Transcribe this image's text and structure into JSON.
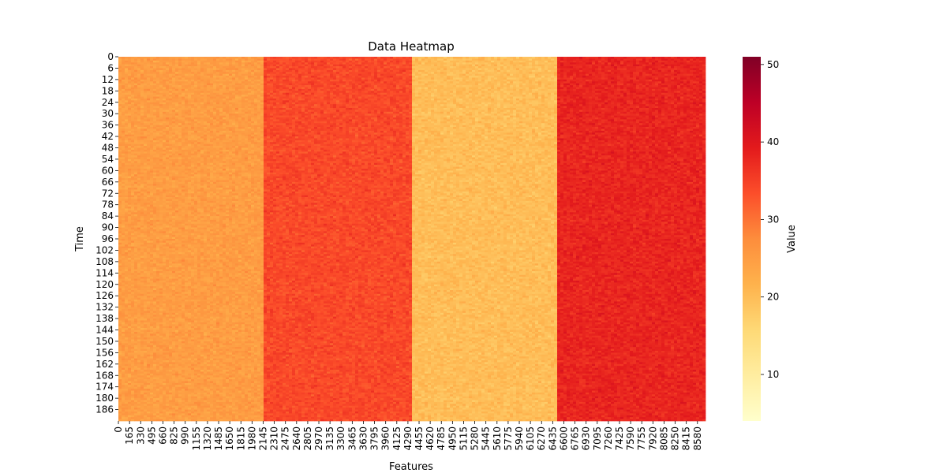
{
  "chart_data": {
    "type": "heatmap",
    "title": "Data Heatmap",
    "xlabel": "Features",
    "ylabel": "Time",
    "colorbar_label": "Value",
    "colormap": "YlOrRd",
    "colormap_stops": [
      "#ffffcc",
      "#ffeda0",
      "#fed976",
      "#feb24c",
      "#fd8d3c",
      "#fc4e2a",
      "#e31a1c",
      "#bd0026",
      "#800026"
    ],
    "value_range": [
      4,
      51
    ],
    "rows": 192,
    "columns": 8700,
    "x_ticks": [
      "0",
      "165",
      "330",
      "495",
      "660",
      "825",
      "990",
      "1155",
      "1320",
      "1485",
      "1650",
      "1815",
      "1980",
      "2145",
      "2310",
      "2475",
      "2640",
      "2805",
      "2970",
      "3135",
      "3300",
      "3465",
      "3630",
      "3795",
      "3960",
      "4125",
      "4290",
      "4455",
      "4620",
      "4785",
      "4950",
      "5115",
      "5280",
      "5445",
      "5610",
      "5775",
      "5940",
      "6105",
      "6270",
      "6435",
      "6600",
      "6765",
      "6930",
      "7095",
      "7260",
      "7425",
      "7590",
      "7755",
      "7920",
      "8085",
      "8250",
      "8415",
      "8580"
    ],
    "y_ticks": [
      "0",
      "6",
      "12",
      "18",
      "24",
      "30",
      "36",
      "42",
      "48",
      "54",
      "60",
      "66",
      "72",
      "78",
      "84",
      "90",
      "96",
      "102",
      "108",
      "114",
      "120",
      "126",
      "132",
      "138",
      "144",
      "150",
      "156",
      "162",
      "168",
      "174",
      "180",
      "186"
    ],
    "colorbar_ticks": [
      "10",
      "20",
      "30",
      "40",
      "50"
    ],
    "feature_blocks": [
      {
        "start": 0,
        "end": 2175,
        "mean_value": 25
      },
      {
        "start": 2175,
        "end": 4350,
        "mean_value": 34
      },
      {
        "start": 4350,
        "end": 6525,
        "mean_value": 20
      },
      {
        "start": 6525,
        "end": 8700,
        "mean_value": 38
      }
    ]
  }
}
